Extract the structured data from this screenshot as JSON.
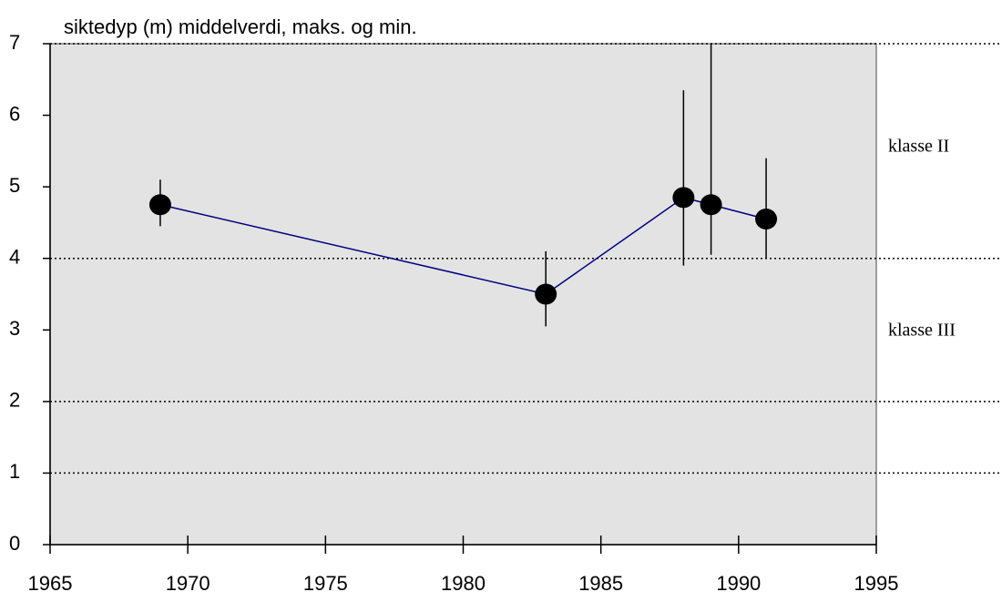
{
  "chart_data": {
    "type": "errorbar",
    "title": "siktedyp (m)  middelverdi, maks. og min.",
    "x": [
      1969,
      1983,
      1988,
      1989,
      1991
    ],
    "series": [
      {
        "color": "#000080",
        "marker_color": "#000000",
        "values": [
          4.75,
          3.5,
          4.85,
          4.75,
          4.55
        ],
        "max": [
          5.1,
          4.1,
          6.35,
          7.0,
          5.4
        ],
        "min": [
          4.45,
          3.05,
          3.9,
          4.05,
          4.0
        ]
      }
    ],
    "xlim": [
      1965,
      1995
    ],
    "xticks": [
      1965,
      1970,
      1975,
      1980,
      1985,
      1990,
      1995
    ],
    "ylim": [
      0,
      7
    ],
    "yticks": [
      0,
      1,
      2,
      3,
      4,
      5,
      6,
      7
    ],
    "class_lines": [
      1,
      2,
      4,
      7
    ],
    "annotations": [
      "klasse II",
      "klasse III"
    ],
    "plot_background": "#e3e3e3"
  }
}
